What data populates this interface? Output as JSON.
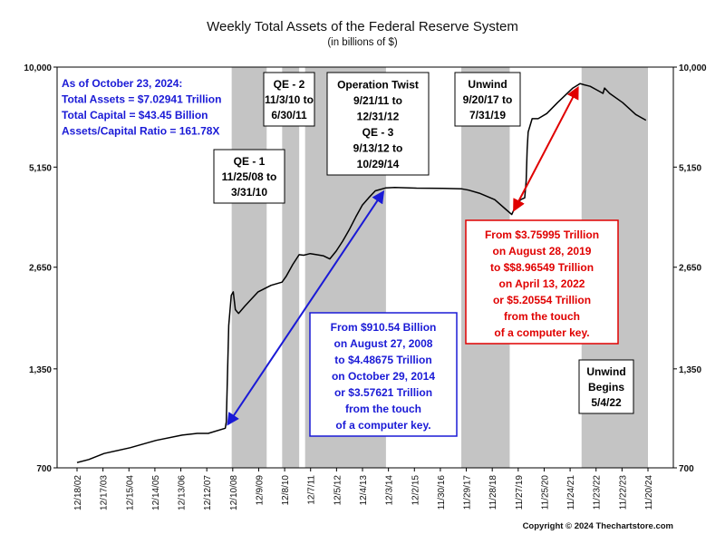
{
  "chart_data": {
    "type": "line",
    "title": "Weekly Total Assets of the Federal Reserve System",
    "subtitle": "(in billions of $)",
    "y_scale": "log",
    "ylim": [
      700,
      10000
    ],
    "y_ticks": [
      "10,000",
      "5,150",
      "2,650",
      "1,350",
      "700"
    ],
    "x_ticks": [
      "12/18/02",
      "12/17/03",
      "12/15/04",
      "12/14/05",
      "12/13/06",
      "12/12/07",
      "12/10/08",
      "12/9/09",
      "12/8/10",
      "12/7/11",
      "12/5/12",
      "12/4/13",
      "12/3/14",
      "12/2/15",
      "11/30/16",
      "11/29/17",
      "11/28/18",
      "11/27/19",
      "11/25/20",
      "11/24/21",
      "11/23/22",
      "11/22/23",
      "11/20/24"
    ],
    "xlim": [
      "2002-12-18",
      "2024-11-20"
    ],
    "grid": false,
    "series": [
      {
        "x": [
          "2002-12-18",
          "2003-06-01",
          "2004-01-01",
          "2005-01-01",
          "2006-01-01",
          "2007-01-01",
          "2007-08-01",
          "2008-01-01",
          "2008-08-27",
          "2008-09-10",
          "2008-10-15",
          "2008-11-20",
          "2008-12-18",
          "2009-01-15",
          "2009-03-01",
          "2009-06-01",
          "2009-09-01",
          "2009-12-01",
          "2010-06-01",
          "2010-11-01",
          "2011-01-01",
          "2011-04-01",
          "2011-06-30",
          "2011-09-01",
          "2011-12-01",
          "2012-03-01",
          "2012-06-01",
          "2012-09-01",
          "2012-12-01",
          "2013-03-01",
          "2013-06-01",
          "2013-09-01",
          "2013-12-01",
          "2014-03-01",
          "2014-06-01",
          "2014-10-29",
          "2015-03-01",
          "2016-01-01",
          "2017-01-01",
          "2017-09-20",
          "2018-01-01",
          "2018-06-01",
          "2019-01-01",
          "2019-06-01",
          "2019-08-28",
          "2019-10-15",
          "2019-12-31",
          "2020-02-26",
          "2020-03-18",
          "2020-04-01",
          "2020-04-15",
          "2020-06-10",
          "2020-09-01",
          "2021-01-01",
          "2021-06-01",
          "2022-01-01",
          "2022-04-13",
          "2022-06-01",
          "2022-09-01",
          "2022-12-01",
          "2023-03-01",
          "2023-03-22",
          "2023-06-01",
          "2023-12-01",
          "2024-06-01",
          "2024-10-23"
        ],
        "y": [
          725,
          740,
          770,
          800,
          840,
          870,
          880,
          880,
          910.54,
          950,
          1800,
          2200,
          2250,
          2000,
          1950,
          2050,
          2150,
          2250,
          2350,
          2400,
          2500,
          2700,
          2880,
          2870,
          2900,
          2880,
          2860,
          2800,
          2950,
          3150,
          3400,
          3700,
          4000,
          4200,
          4400,
          4486.75,
          4500,
          4480,
          4470,
          4460,
          4420,
          4330,
          4150,
          3900,
          3759.95,
          3950,
          4150,
          4200,
          4700,
          5800,
          6500,
          7100,
          7100,
          7350,
          7900,
          8700,
          8965.49,
          8900,
          8800,
          8600,
          8400,
          8700,
          8400,
          7900,
          7300,
          7029.41
        ]
      }
    ],
    "shaded_periods": [
      [
        "2008-11-25",
        "2010-03-31"
      ],
      [
        "2010-11-03",
        "2011-06-30"
      ],
      [
        "2011-09-21",
        "2014-10-29"
      ],
      [
        "2017-09-20",
        "2019-07-31"
      ],
      [
        "2022-05-04",
        "2024-11-20"
      ]
    ],
    "period_labels": [
      {
        "lines": [
          "QE - 1",
          "11/25/08 to",
          "3/31/10"
        ]
      },
      {
        "lines": [
          "QE - 2",
          "11/3/10 to",
          "6/30/11"
        ]
      },
      {
        "lines": [
          "Operation Twist",
          "9/21/11 to",
          "12/31/12",
          "QE - 3",
          "9/13/12 to",
          "10/29/14"
        ]
      },
      {
        "lines": [
          "Unwind",
          "9/20/17 to",
          "7/31/19"
        ]
      },
      {
        "lines": [
          "Unwind",
          "Begins",
          "5/4/22"
        ]
      }
    ],
    "info_box": [
      "As of October 23, 2024:",
      "Total Assets = $7.02941 Trillion",
      "Total Capital  = $43.45 Billion",
      "Assets/Capital Ratio = 161.78X"
    ],
    "annotations": [
      {
        "color": "#1a1ad6",
        "from": [
          "2008-08-27",
          910.54
        ],
        "to": [
          "2014-10-29",
          4486.75
        ],
        "lines": [
          "From $910.54 Billion",
          "on August 27, 2008",
          "to $4.48675 Trillion",
          "on October 29, 2014",
          "or $3.57621 Trillion",
          "from the touch",
          "of a computer key."
        ]
      },
      {
        "color": "#e00000",
        "from": [
          "2019-08-28",
          3759.95
        ],
        "to": [
          "2022-04-13",
          8965.49
        ],
        "lines": [
          "From $3.75995 Trillion",
          "on August 28, 2019",
          "to $$8.96549 Trillion",
          "on April 13, 2022",
          "or $5.20554 Trillion",
          "from the touch",
          "of a computer key."
        ]
      }
    ],
    "line_color": "#000000",
    "shade_color": "#c4c4c4"
  },
  "copyright": "Copyright © 2024 Thechartstore.com"
}
